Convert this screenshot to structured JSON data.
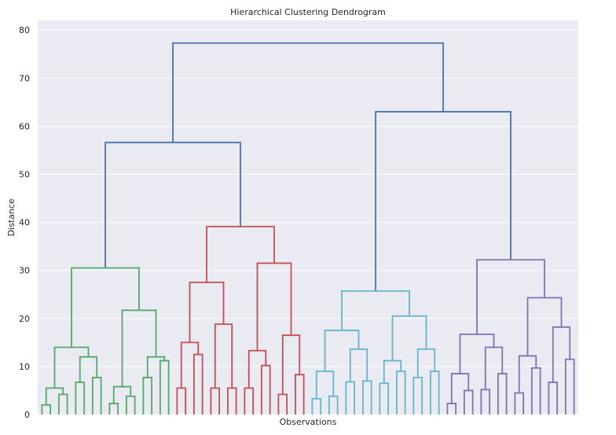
{
  "chart_data": {
    "type": "dendrogram",
    "title": "Hierarchical Clustering Dendrogram",
    "xlabel": "Observations",
    "ylabel": "Distance",
    "ylim": [
      0,
      82
    ],
    "yticks": [
      0,
      10,
      20,
      30,
      40,
      50,
      60,
      70,
      80
    ],
    "ytick_labels": [
      "0",
      "10",
      "20",
      "30",
      "40",
      "50",
      "60",
      "70",
      "80"
    ],
    "grid": true,
    "background": "#eaeaf2",
    "leaf_count": 64,
    "colors": {
      "c1": "#55a868",
      "c2": "#c44e52",
      "c3": "#64b5cd",
      "c4": "#8172b2",
      "above": "#4c72b0"
    },
    "tree": {
      "h": 77.3,
      "c": "above",
      "ch": [
        {
          "h": 56.6,
          "c": "above",
          "ch": [
            {
              "h": 30.5,
              "c": "c1",
              "ch": [
                {
                  "h": 14.0,
                  "c": "c1",
                  "ch": [
                    {
                      "h": 5.5,
                      "c": "c1",
                      "ch": [
                        {
                          "h": 2.0,
                          "c": "c1",
                          "ch": [
                            {},
                            {}
                          ]
                        },
                        {
                          "h": 4.2,
                          "c": "c1",
                          "ch": [
                            {},
                            {}
                          ]
                        }
                      ]
                    },
                    {
                      "h": 12.0,
                      "c": "c1",
                      "ch": [
                        {
                          "h": 6.7,
                          "c": "c1",
                          "ch": [
                            {},
                            {}
                          ]
                        },
                        {
                          "h": 7.7,
                          "c": "c1",
                          "ch": [
                            {},
                            {}
                          ]
                        }
                      ]
                    }
                  ]
                },
                {
                  "h": 21.7,
                  "c": "c1",
                  "ch": [
                    {
                      "h": 5.8,
                      "c": "c1",
                      "ch": [
                        {
                          "h": 2.3,
                          "c": "c1",
                          "ch": [
                            {},
                            {}
                          ]
                        },
                        {
                          "h": 3.8,
                          "c": "c1",
                          "ch": [
                            {},
                            {}
                          ]
                        }
                      ]
                    },
                    {
                      "h": 12.0,
                      "c": "c1",
                      "ch": [
                        {
                          "h": 7.7,
                          "c": "c1",
                          "ch": [
                            {},
                            {}
                          ]
                        },
                        {
                          "h": 11.2,
                          "c": "c1",
                          "ch": [
                            {},
                            {}
                          ]
                        }
                      ]
                    }
                  ]
                }
              ]
            },
            {
              "h": 39.1,
              "c": "c2",
              "ch": [
                {
                  "h": 27.5,
                  "c": "c2",
                  "ch": [
                    {
                      "h": 15.0,
                      "c": "c2",
                      "ch": [
                        {
                          "h": 5.5,
                          "c": "c2",
                          "ch": [
                            {},
                            {}
                          ]
                        },
                        {
                          "h": 12.5,
                          "c": "c2",
                          "ch": [
                            {},
                            {}
                          ]
                        }
                      ]
                    },
                    {
                      "h": 18.8,
                      "c": "c2",
                      "ch": [
                        {
                          "h": 5.5,
                          "c": "c2",
                          "ch": [
                            {},
                            {}
                          ]
                        },
                        {
                          "h": 5.5,
                          "c": "c2",
                          "ch": [
                            {},
                            {}
                          ]
                        }
                      ]
                    }
                  ]
                },
                {
                  "h": 31.5,
                  "c": "c2",
                  "ch": [
                    {
                      "h": 13.3,
                      "c": "c2",
                      "ch": [
                        {
                          "h": 5.5,
                          "c": "c2",
                          "ch": [
                            {},
                            {}
                          ]
                        },
                        {
                          "h": 10.2,
                          "c": "c2",
                          "ch": [
                            {},
                            {}
                          ]
                        }
                      ]
                    },
                    {
                      "h": 16.5,
                      "c": "c2",
                      "ch": [
                        {
                          "h": 4.2,
                          "c": "c2",
                          "ch": [
                            {},
                            {}
                          ]
                        },
                        {
                          "h": 8.3,
                          "c": "c2",
                          "ch": [
                            {},
                            {}
                          ]
                        }
                      ]
                    }
                  ]
                }
              ]
            }
          ]
        },
        {
          "h": 63.0,
          "c": "above",
          "ch": [
            {
              "h": 25.7,
              "c": "c3",
              "ch": [
                {
                  "h": 17.5,
                  "c": "c3",
                  "ch": [
                    {
                      "h": 9.0,
                      "c": "c3",
                      "ch": [
                        {
                          "h": 3.3,
                          "c": "c3",
                          "ch": [
                            {},
                            {}
                          ]
                        },
                        {
                          "h": 3.8,
                          "c": "c3",
                          "ch": [
                            {},
                            {}
                          ]
                        }
                      ]
                    },
                    {
                      "h": 13.6,
                      "c": "c3",
                      "ch": [
                        {
                          "h": 6.8,
                          "c": "c3",
                          "ch": [
                            {},
                            {}
                          ]
                        },
                        {
                          "h": 7.0,
                          "c": "c3",
                          "ch": [
                            {},
                            {}
                          ]
                        }
                      ]
                    }
                  ]
                },
                {
                  "h": 20.5,
                  "c": "c3",
                  "ch": [
                    {
                      "h": 11.2,
                      "c": "c3",
                      "ch": [
                        {
                          "h": 6.5,
                          "c": "c3",
                          "ch": [
                            {},
                            {}
                          ]
                        },
                        {
                          "h": 9.0,
                          "c": "c3",
                          "ch": [
                            {},
                            {}
                          ]
                        }
                      ]
                    },
                    {
                      "h": 13.6,
                      "c": "c3",
                      "ch": [
                        {
                          "h": 7.7,
                          "c": "c3",
                          "ch": [
                            {},
                            {}
                          ]
                        },
                        {
                          "h": 9.0,
                          "c": "c3",
                          "ch": [
                            {},
                            {}
                          ]
                        }
                      ]
                    }
                  ]
                }
              ]
            },
            {
              "h": 32.2,
              "c": "c4",
              "ch": [
                {
                  "h": 16.7,
                  "c": "c4",
                  "ch": [
                    {
                      "h": 8.5,
                      "c": "c4",
                      "ch": [
                        {
                          "h": 2.3,
                          "c": "c4",
                          "ch": [
                            {},
                            {}
                          ]
                        },
                        {
                          "h": 5.0,
                          "c": "c4",
                          "ch": [
                            {},
                            {}
                          ]
                        }
                      ]
                    },
                    {
                      "h": 14.0,
                      "c": "c4",
                      "ch": [
                        {
                          "h": 5.2,
                          "c": "c4",
                          "ch": [
                            {},
                            {}
                          ]
                        },
                        {
                          "h": 8.5,
                          "c": "c4",
                          "ch": [
                            {},
                            {}
                          ]
                        }
                      ]
                    }
                  ]
                },
                {
                  "h": 24.3,
                  "c": "c4",
                  "ch": [
                    {
                      "h": 12.2,
                      "c": "c4",
                      "ch": [
                        {
                          "h": 4.5,
                          "c": "c4",
                          "ch": [
                            {},
                            {}
                          ]
                        },
                        {
                          "h": 9.7,
                          "c": "c4",
                          "ch": [
                            {},
                            {}
                          ]
                        }
                      ]
                    },
                    {
                      "h": 18.2,
                      "c": "c4",
                      "ch": [
                        {
                          "h": 6.7,
                          "c": "c4",
                          "ch": [
                            {},
                            {}
                          ]
                        },
                        {
                          "h": 11.5,
                          "c": "c4",
                          "ch": [
                            {},
                            {}
                          ]
                        }
                      ]
                    }
                  ]
                }
              ]
            }
          ]
        }
      ]
    }
  }
}
